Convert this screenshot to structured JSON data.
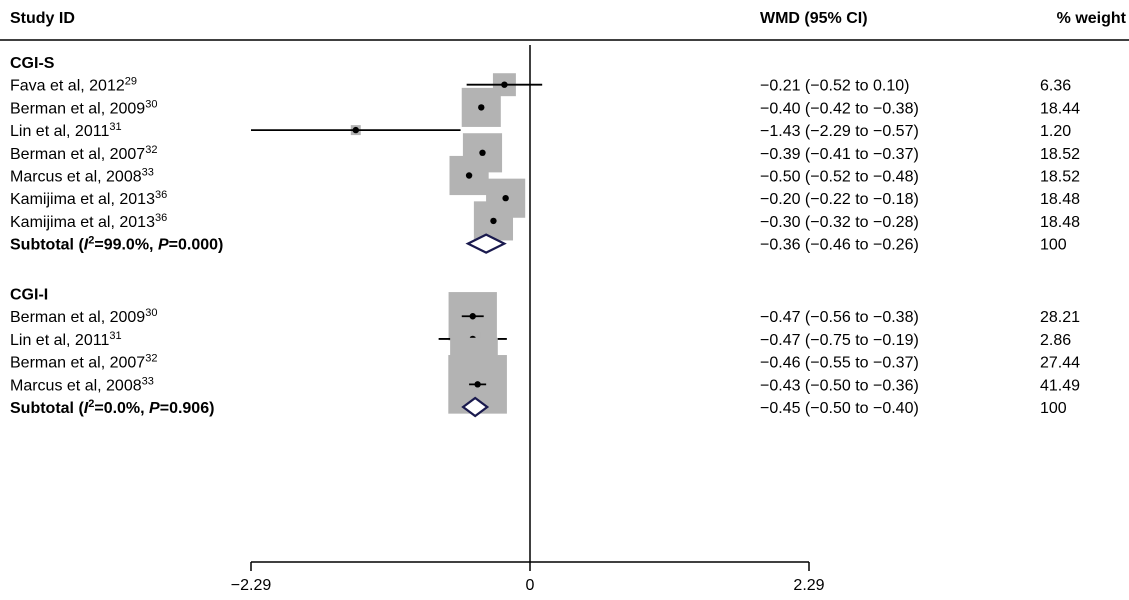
{
  "chart_data": {
    "type": "forest",
    "headers": {
      "study": "Study ID",
      "effect": "WMD (95% CI)",
      "weight": "% weight"
    },
    "x_axis": {
      "ticks": [
        -2.29,
        0,
        2.29
      ],
      "tick_labels": [
        "−2.29",
        "0",
        "2.29"
      ],
      "range": [
        -2.29,
        2.29
      ],
      "reference_line": 0
    },
    "groups": [
      {
        "label": "CGI-S",
        "studies": [
          {
            "name": "Fava et al, 2012",
            "ref": "29",
            "estimate": -0.21,
            "lower": -0.52,
            "upper": 0.1,
            "ci_text": "−0.21 (−0.52 to 0.10)",
            "weight": 6.36,
            "weight_text": "6.36"
          },
          {
            "name": "Berman et al, 2009",
            "ref": "30",
            "estimate": -0.4,
            "lower": -0.42,
            "upper": -0.38,
            "ci_text": "−0.40 (−0.42 to −0.38)",
            "weight": 18.44,
            "weight_text": "18.44"
          },
          {
            "name": "Lin et al, 2011",
            "ref": "31",
            "estimate": -1.43,
            "lower": -2.29,
            "upper": -0.57,
            "ci_text": "−1.43 (−2.29 to −0.57)",
            "weight": 1.2,
            "weight_text": "1.20"
          },
          {
            "name": "Berman et al, 2007",
            "ref": "32",
            "estimate": -0.39,
            "lower": -0.41,
            "upper": -0.37,
            "ci_text": "−0.39 (−0.41 to −0.37)",
            "weight": 18.52,
            "weight_text": "18.52"
          },
          {
            "name": "Marcus et al, 2008",
            "ref": "33",
            "estimate": -0.5,
            "lower": -0.52,
            "upper": -0.48,
            "ci_text": "−0.50 (−0.52 to −0.48)",
            "weight": 18.52,
            "weight_text": "18.52"
          },
          {
            "name": "Kamijima et al, 2013",
            "ref": "36",
            "estimate": -0.2,
            "lower": -0.22,
            "upper": -0.18,
            "ci_text": "−0.20 (−0.22 to −0.18)",
            "weight": 18.48,
            "weight_text": "18.48"
          },
          {
            "name": "Kamijima et al, 2013",
            "ref": "36",
            "estimate": -0.3,
            "lower": -0.32,
            "upper": -0.28,
            "ci_text": "−0.30 (−0.32 to −0.28)",
            "weight": 18.48,
            "weight_text": "18.48"
          }
        ],
        "subtotal": {
          "label_prefix": "Subtotal (",
          "i2_symbol": "I",
          "i2_sup": "2",
          "i2_value": "=99.0%, ",
          "p_symbol": "P",
          "p_value": "=0.000)",
          "estimate": -0.36,
          "lower": -0.46,
          "upper": -0.26,
          "ci_text": "−0.36 (−0.46 to −0.26)",
          "weight_text": "100"
        }
      },
      {
        "label": "CGI-I",
        "studies": [
          {
            "name": "Berman et al, 2009",
            "ref": "30",
            "estimate": -0.47,
            "lower": -0.56,
            "upper": -0.38,
            "ci_text": "−0.47 (−0.56 to −0.38)",
            "weight": 28.21,
            "weight_text": "28.21"
          },
          {
            "name": "Lin et al, 2011",
            "ref": "31",
            "estimate": -0.47,
            "lower": -0.75,
            "upper": -0.19,
            "ci_text": "−0.47 (−0.75 to −0.19)",
            "weight": 2.86,
            "weight_text": "2.86"
          },
          {
            "name": "Berman et al, 2007",
            "ref": "32",
            "estimate": -0.46,
            "lower": -0.55,
            "upper": -0.37,
            "ci_text": "−0.46 (−0.55 to −0.37)",
            "weight": 27.44,
            "weight_text": "27.44"
          },
          {
            "name": "Marcus et al, 2008",
            "ref": "33",
            "estimate": -0.43,
            "lower": -0.5,
            "upper": -0.36,
            "ci_text": "−0.43 (−0.50 to −0.36)",
            "weight": 41.49,
            "weight_text": "41.49"
          }
        ],
        "subtotal": {
          "label_prefix": "Subtotal (",
          "i2_symbol": "I",
          "i2_sup": "2",
          "i2_value": "=0.0%, ",
          "p_symbol": "P",
          "p_value": "=0.906)",
          "estimate": -0.45,
          "lower": -0.5,
          "upper": -0.4,
          "ci_text": "−0.45 (−0.50 to −0.40)",
          "weight_text": "100"
        }
      }
    ],
    "colors": {
      "box": "#b3b3b3",
      "line": "#000000",
      "diamond": "#1a1a4e",
      "text": "#000000"
    }
  }
}
